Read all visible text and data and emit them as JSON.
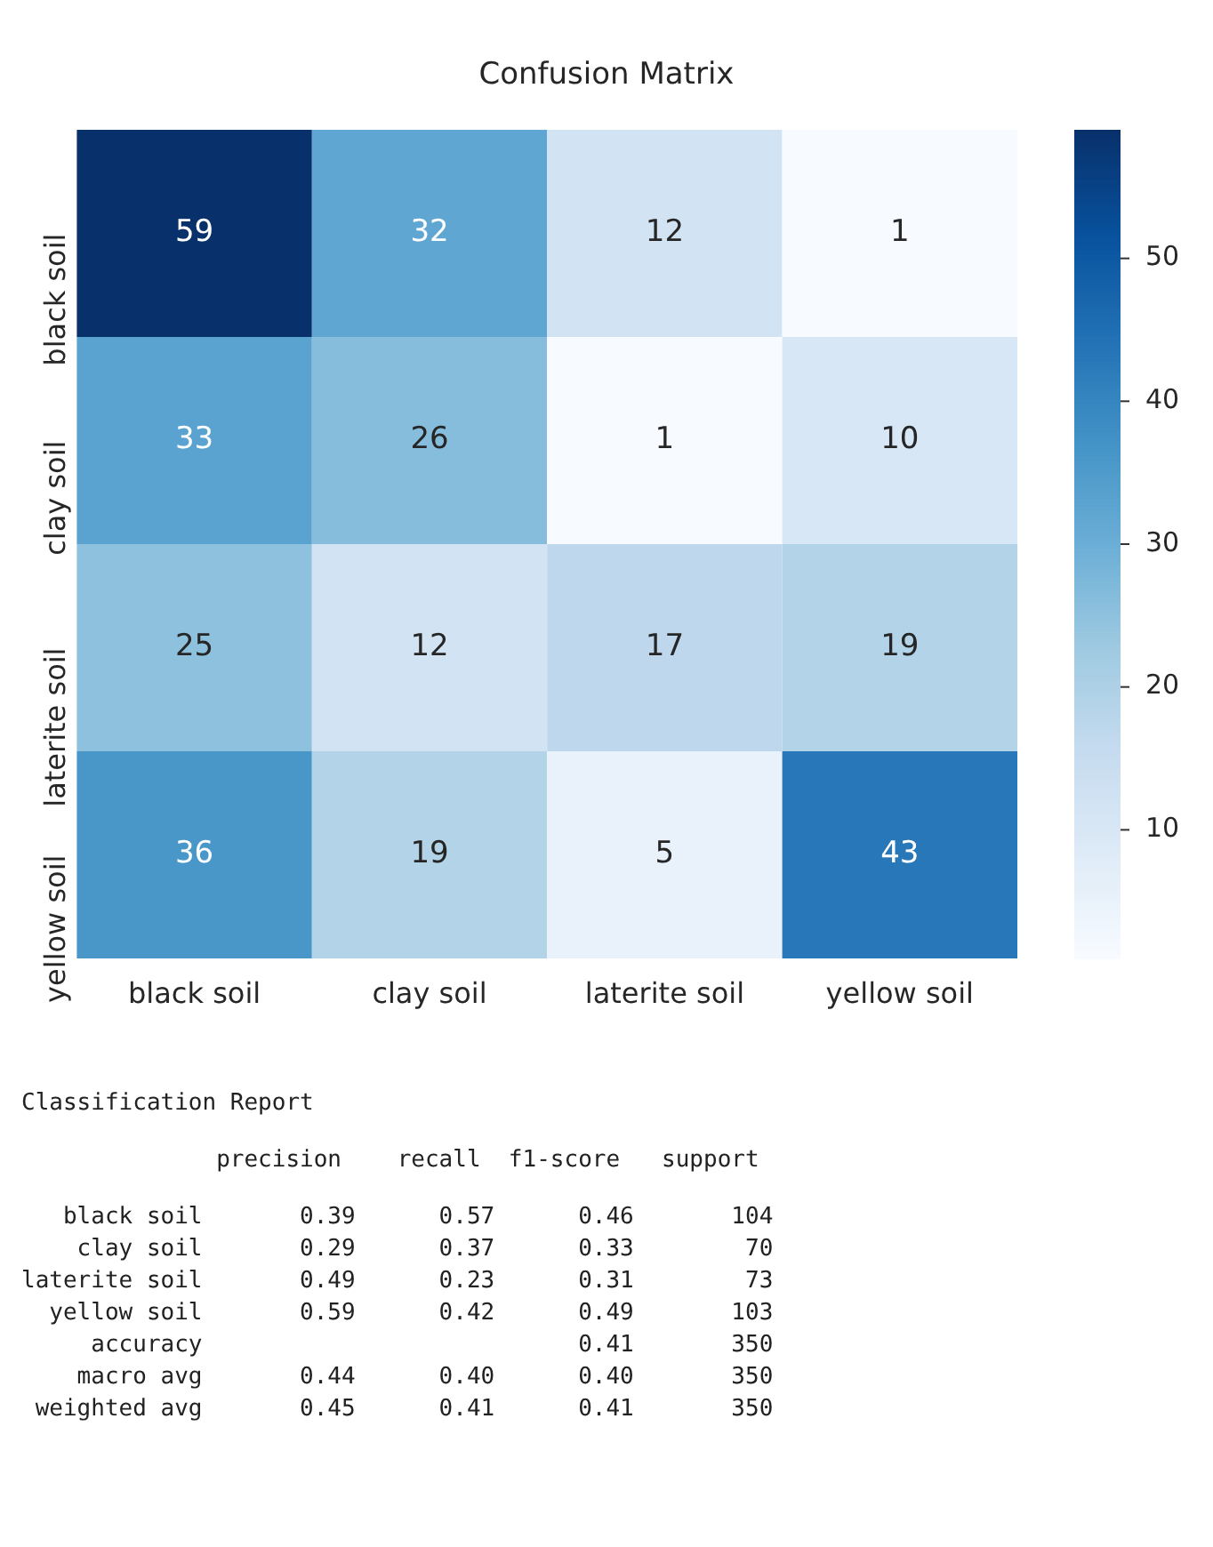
{
  "chart_data": {
    "type": "heatmap",
    "title": "Confusion Matrix",
    "categories": [
      "black soil",
      "clay soil",
      "laterite soil",
      "yellow soil"
    ],
    "y_categories": [
      "black soil",
      "clay soil",
      "laterite soil",
      "yellow soil"
    ],
    "cells": [
      [
        59,
        32,
        12,
        1
      ],
      [
        33,
        26,
        1,
        10
      ],
      [
        25,
        12,
        17,
        19
      ],
      [
        36,
        19,
        5,
        43
      ]
    ],
    "clim": [
      1,
      59
    ],
    "cticks": [
      10,
      20,
      30,
      40,
      50
    ],
    "data_labels": true,
    "annotations": [
      "Classification Report",
      "              precision    recall  f1-score   support",
      "   black soil       0.39      0.57      0.46       104",
      "    clay soil       0.29      0.37      0.33        70",
      "laterite soil       0.49      0.23      0.31        73",
      "  yellow soil       0.59      0.42      0.49       103",
      "     accuracy                           0.41       350",
      "    macro avg       0.44      0.40      0.40       350",
      " weighted avg       0.45      0.41      0.41       350"
    ]
  }
}
